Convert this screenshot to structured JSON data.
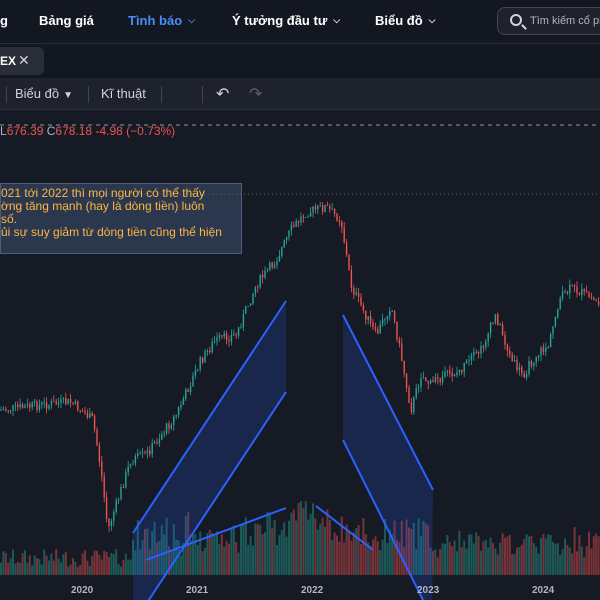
{
  "nav": {
    "partial_left": "g",
    "items": [
      {
        "label": "Bảng giá"
      },
      {
        "label": "Tình báo"
      },
      {
        "label": "Ý tưởng đầu tư"
      },
      {
        "label": "Biểu đồ"
      }
    ],
    "search_placeholder": "Tìm kiếm cổ phi"
  },
  "tab": {
    "label": "EX"
  },
  "toolbar": {
    "chart_type_label": "Biểu đồ",
    "technical_label": "Kĩ thuật"
  },
  "ohlc": {
    "low_label": "L",
    "low": "676.39",
    "close_label": "C",
    "close": "678.18",
    "change": "-4.98",
    "change_pct": "(−0.73%)"
  },
  "note": {
    "lines": [
      "021 tới 2022 thì mọi người có thể thấy",
      "ờng  tăng mạnh (hay là dòng tiền) luôn",
      "số.",
      "ủi sự suy giảm từ dòng tiền cũng thể hiện"
    ]
  },
  "chart_data": {
    "type": "candlestick",
    "x_ticks": [
      "2020",
      "2021",
      "2022",
      "2023",
      "2024"
    ],
    "colors": {
      "up": "#26a69a",
      "down": "#ef5350",
      "trend": "#2962ff"
    }
  }
}
